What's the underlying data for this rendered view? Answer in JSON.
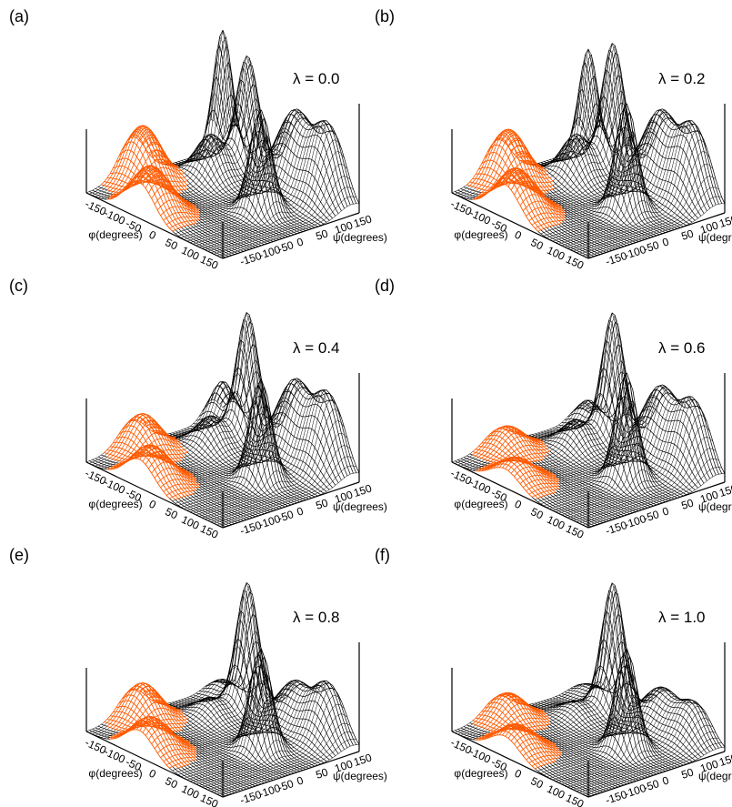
{
  "chart_data": {
    "type": "surface",
    "x_axis": {
      "label": "φ(degrees)",
      "ticks": [
        "-150",
        "-100",
        "-50",
        "0",
        "50",
        "100",
        "150"
      ],
      "range": [
        -180,
        180
      ]
    },
    "y_axis": {
      "label": "ψ(degrees)",
      "ticks": [
        "-150",
        "-100",
        "-50",
        "0",
        "50",
        "100",
        "150"
      ],
      "range": [
        -180,
        180
      ]
    },
    "colors": {
      "mesh": "#000000",
      "highlight": "#ff5a00",
      "background": "#ffffff"
    },
    "panels": [
      {
        "label": "(a)",
        "lambda": "λ = 0.0",
        "peaks": [
          {
            "phi": -150,
            "psi": 150,
            "height": 1.0,
            "width": 6,
            "highlight": false
          },
          {
            "phi": -75,
            "psi": 140,
            "height": 0.9,
            "width": 7,
            "highlight": false
          },
          {
            "phi": -90,
            "psi": 60,
            "height": 0.35,
            "width": 10,
            "highlight": false
          },
          {
            "phi": 30,
            "psi": 160,
            "height": 0.6,
            "width": 12,
            "highlight": false
          },
          {
            "phi": 70,
            "psi": 30,
            "height": 0.8,
            "width": 7,
            "highlight": false
          },
          {
            "phi": 115,
            "psi": 160,
            "height": 0.6,
            "width": 11,
            "highlight": false
          },
          {
            "phi": -150,
            "psi": -60,
            "height": 0.45,
            "width": 12,
            "highlight": true
          },
          {
            "phi": -40,
            "psi": -150,
            "height": 0.38,
            "width": 13,
            "highlight": true
          }
        ]
      },
      {
        "label": "(b)",
        "lambda": "λ = 0.2",
        "peaks": [
          {
            "phi": -150,
            "psi": 150,
            "height": 0.85,
            "width": 6,
            "highlight": false
          },
          {
            "phi": -75,
            "psi": 140,
            "height": 1.0,
            "width": 7,
            "highlight": false
          },
          {
            "phi": -90,
            "psi": 60,
            "height": 0.35,
            "width": 10,
            "highlight": false
          },
          {
            "phi": 30,
            "psi": 160,
            "height": 0.6,
            "width": 12,
            "highlight": false
          },
          {
            "phi": 70,
            "psi": 30,
            "height": 0.85,
            "width": 7,
            "highlight": false
          },
          {
            "phi": 115,
            "psi": 160,
            "height": 0.6,
            "width": 11,
            "highlight": false
          },
          {
            "phi": -150,
            "psi": -60,
            "height": 0.42,
            "width": 12,
            "highlight": true
          },
          {
            "phi": -40,
            "psi": -150,
            "height": 0.36,
            "width": 13,
            "highlight": true
          }
        ]
      },
      {
        "label": "(c)",
        "lambda": "λ = 0.4",
        "peaks": [
          {
            "phi": -150,
            "psi": 150,
            "height": 0.35,
            "width": 8,
            "highlight": false
          },
          {
            "phi": -75,
            "psi": 140,
            "height": 1.0,
            "width": 7,
            "highlight": false
          },
          {
            "phi": -90,
            "psi": 60,
            "height": 0.25,
            "width": 10,
            "highlight": false
          },
          {
            "phi": 30,
            "psi": 160,
            "height": 0.6,
            "width": 12,
            "highlight": false
          },
          {
            "phi": 70,
            "psi": 30,
            "height": 0.8,
            "width": 7,
            "highlight": false
          },
          {
            "phi": 115,
            "psi": 160,
            "height": 0.6,
            "width": 11,
            "highlight": false
          },
          {
            "phi": -150,
            "psi": -60,
            "height": 0.3,
            "width": 12,
            "highlight": true
          },
          {
            "phi": -40,
            "psi": -150,
            "height": 0.3,
            "width": 13,
            "highlight": true
          }
        ]
      },
      {
        "label": "(d)",
        "lambda": "λ = 0.6",
        "peaks": [
          {
            "phi": -150,
            "psi": 150,
            "height": 0.2,
            "width": 8,
            "highlight": false
          },
          {
            "phi": -75,
            "psi": 140,
            "height": 1.0,
            "width": 7,
            "highlight": false
          },
          {
            "phi": -90,
            "psi": 60,
            "height": 0.22,
            "width": 10,
            "highlight": false
          },
          {
            "phi": 30,
            "psi": 160,
            "height": 0.55,
            "width": 12,
            "highlight": false
          },
          {
            "phi": 70,
            "psi": 30,
            "height": 0.85,
            "width": 7,
            "highlight": false
          },
          {
            "phi": 115,
            "psi": 160,
            "height": 0.55,
            "width": 11,
            "highlight": false
          },
          {
            "phi": -150,
            "psi": -60,
            "height": 0.2,
            "width": 12,
            "highlight": true
          },
          {
            "phi": -40,
            "psi": -150,
            "height": 0.2,
            "width": 13,
            "highlight": true
          }
        ]
      },
      {
        "label": "(e)",
        "lambda": "λ = 0.8",
        "peaks": [
          {
            "phi": -150,
            "psi": 150,
            "height": 0.12,
            "width": 8,
            "highlight": false
          },
          {
            "phi": -75,
            "psi": 140,
            "height": 1.0,
            "width": 7,
            "highlight": false
          },
          {
            "phi": -90,
            "psi": 60,
            "height": 0.15,
            "width": 10,
            "highlight": false
          },
          {
            "phi": 30,
            "psi": 160,
            "height": 0.35,
            "width": 12,
            "highlight": false
          },
          {
            "phi": 70,
            "psi": 30,
            "height": 0.8,
            "width": 7,
            "highlight": false
          },
          {
            "phi": 115,
            "psi": 160,
            "height": 0.45,
            "width": 11,
            "highlight": false
          },
          {
            "phi": -150,
            "psi": -60,
            "height": 0.3,
            "width": 12,
            "highlight": true
          },
          {
            "phi": -40,
            "psi": -150,
            "height": 0.28,
            "width": 13,
            "highlight": true
          }
        ]
      },
      {
        "label": "(f)",
        "lambda": "λ = 1.0",
        "peaks": [
          {
            "phi": -150,
            "psi": 150,
            "height": 0.08,
            "width": 8,
            "highlight": false
          },
          {
            "phi": -75,
            "psi": 140,
            "height": 1.0,
            "width": 7,
            "highlight": false
          },
          {
            "phi": -90,
            "psi": 60,
            "height": 0.12,
            "width": 10,
            "highlight": false
          },
          {
            "phi": 30,
            "psi": 160,
            "height": 0.3,
            "width": 12,
            "highlight": false
          },
          {
            "phi": 70,
            "psi": 30,
            "height": 0.8,
            "width": 7,
            "highlight": false
          },
          {
            "phi": 115,
            "psi": 160,
            "height": 0.3,
            "width": 11,
            "highlight": false
          },
          {
            "phi": -150,
            "psi": -60,
            "height": 0.22,
            "width": 12,
            "highlight": true
          },
          {
            "phi": -40,
            "psi": -150,
            "height": 0.22,
            "width": 13,
            "highlight": true
          }
        ]
      }
    ]
  }
}
